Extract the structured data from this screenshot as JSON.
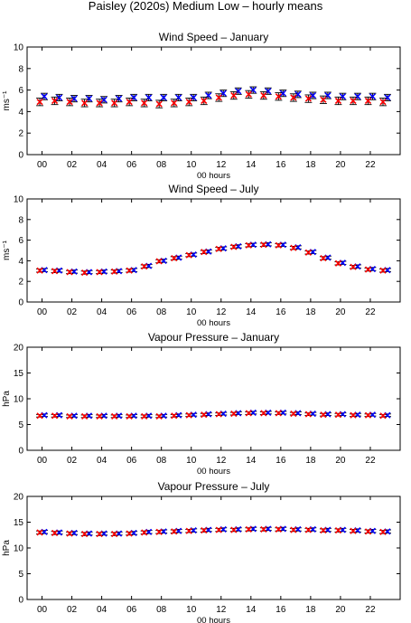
{
  "title": "Paisley (2020s) Medium Low – hourly means",
  "colors": {
    "series_a": "#0000ff",
    "series_b": "#ff0000",
    "errorbar": "#000000",
    "axes": "#000000"
  },
  "chart_data": [
    {
      "type": "scatter",
      "title": "Wind Speed – January",
      "xlabel": "00 hours",
      "ylabel": "ms⁻¹",
      "xlim": [
        -1,
        24
      ],
      "ylim": [
        0,
        10
      ],
      "yticks": [
        0,
        2,
        4,
        6,
        8,
        10
      ],
      "xticks": [
        "00",
        "02",
        "04",
        "06",
        "08",
        "10",
        "12",
        "14",
        "16",
        "18",
        "20",
        "22"
      ],
      "x": [
        0,
        1,
        2,
        3,
        4,
        5,
        6,
        7,
        8,
        9,
        10,
        11,
        12,
        13,
        14,
        15,
        16,
        17,
        18,
        19,
        20,
        21,
        22,
        23
      ],
      "series": [
        {
          "marker": "x",
          "color": "#0000ff",
          "values": [
            5.4,
            5.3,
            5.2,
            5.2,
            5.1,
            5.2,
            5.3,
            5.3,
            5.3,
            5.3,
            5.3,
            5.5,
            5.7,
            5.9,
            6.0,
            5.9,
            5.7,
            5.6,
            5.5,
            5.5,
            5.4,
            5.4,
            5.4,
            5.3
          ],
          "error": 0.3
        },
        {
          "marker": "x",
          "color": "#ff0000",
          "values": [
            4.9,
            5.0,
            4.9,
            4.8,
            4.8,
            4.8,
            4.9,
            4.8,
            4.7,
            4.8,
            4.9,
            5.0,
            5.3,
            5.5,
            5.6,
            5.5,
            5.4,
            5.3,
            5.2,
            5.1,
            5.0,
            5.0,
            5.0,
            4.9
          ],
          "error": 0.35
        }
      ]
    },
    {
      "type": "scatter",
      "title": "Wind Speed – July",
      "xlabel": "00 hours",
      "ylabel": "ms⁻¹",
      "xlim": [
        -1,
        24
      ],
      "ylim": [
        0,
        10
      ],
      "yticks": [
        0,
        2,
        4,
        6,
        8,
        10
      ],
      "xticks": [
        "00",
        "02",
        "04",
        "06",
        "08",
        "10",
        "12",
        "14",
        "16",
        "18",
        "20",
        "22"
      ],
      "x": [
        0,
        1,
        2,
        3,
        4,
        5,
        6,
        7,
        8,
        9,
        10,
        11,
        12,
        13,
        14,
        15,
        16,
        17,
        18,
        19,
        20,
        21,
        22,
        23
      ],
      "series": [
        {
          "marker": "x",
          "color": "#0000ff",
          "values": [
            3.1,
            3.05,
            2.95,
            2.9,
            2.95,
            3.0,
            3.1,
            3.5,
            4.0,
            4.3,
            4.6,
            4.9,
            5.2,
            5.4,
            5.55,
            5.6,
            5.55,
            5.3,
            4.85,
            4.3,
            3.8,
            3.45,
            3.2,
            3.1
          ],
          "error": 0.15
        },
        {
          "marker": "x",
          "color": "#ff0000",
          "values": [
            3.05,
            3.0,
            2.9,
            2.85,
            2.9,
            2.95,
            3.05,
            3.45,
            3.95,
            4.25,
            4.55,
            4.85,
            5.15,
            5.35,
            5.5,
            5.55,
            5.5,
            5.25,
            4.8,
            4.25,
            3.75,
            3.4,
            3.15,
            3.05
          ],
          "error": 0.15
        }
      ]
    },
    {
      "type": "scatter",
      "title": "Vapour Pressure – January",
      "xlabel": "00 hours",
      "ylabel": "hPa",
      "xlim": [
        -1,
        24
      ],
      "ylim": [
        0,
        20
      ],
      "yticks": [
        0,
        5,
        10,
        15,
        20
      ],
      "xticks": [
        "00",
        "02",
        "04",
        "06",
        "08",
        "10",
        "12",
        "14",
        "16",
        "18",
        "20",
        "22"
      ],
      "x": [
        0,
        1,
        2,
        3,
        4,
        5,
        6,
        7,
        8,
        9,
        10,
        11,
        12,
        13,
        14,
        15,
        16,
        17,
        18,
        19,
        20,
        21,
        22,
        23
      ],
      "series": [
        {
          "marker": "x",
          "color": "#0000ff",
          "values": [
            6.8,
            6.8,
            6.7,
            6.7,
            6.7,
            6.7,
            6.7,
            6.7,
            6.7,
            6.8,
            6.9,
            7.0,
            7.1,
            7.2,
            7.3,
            7.3,
            7.3,
            7.2,
            7.1,
            7.0,
            7.0,
            6.9,
            6.9,
            6.8
          ],
          "error": 0.25
        },
        {
          "marker": "x",
          "color": "#ff0000",
          "values": [
            6.7,
            6.7,
            6.6,
            6.6,
            6.6,
            6.6,
            6.6,
            6.6,
            6.6,
            6.7,
            6.8,
            6.9,
            7.0,
            7.1,
            7.2,
            7.2,
            7.2,
            7.1,
            7.0,
            6.9,
            6.9,
            6.8,
            6.8,
            6.7
          ],
          "error": 0.25
        }
      ]
    },
    {
      "type": "scatter",
      "title": "Vapour Pressure – July",
      "xlabel": "00 hours",
      "ylabel": "hPa",
      "xlim": [
        -1,
        24
      ],
      "ylim": [
        0,
        20
      ],
      "yticks": [
        0,
        5,
        10,
        15,
        20
      ],
      "xticks": [
        "00",
        "02",
        "04",
        "06",
        "08",
        "10",
        "12",
        "14",
        "16",
        "18",
        "20",
        "22"
      ],
      "x": [
        0,
        1,
        2,
        3,
        4,
        5,
        6,
        7,
        8,
        9,
        10,
        11,
        12,
        13,
        14,
        15,
        16,
        17,
        18,
        19,
        20,
        21,
        22,
        23
      ],
      "series": [
        {
          "marker": "x",
          "color": "#0000ff",
          "values": [
            13.1,
            13.0,
            12.9,
            12.8,
            12.8,
            12.8,
            12.9,
            13.1,
            13.2,
            13.3,
            13.4,
            13.5,
            13.6,
            13.6,
            13.7,
            13.7,
            13.7,
            13.6,
            13.6,
            13.5,
            13.5,
            13.4,
            13.3,
            13.2
          ],
          "error": 0.3
        },
        {
          "marker": "x",
          "color": "#ff0000",
          "values": [
            13.0,
            12.9,
            12.8,
            12.7,
            12.7,
            12.7,
            12.8,
            13.0,
            13.1,
            13.2,
            13.3,
            13.4,
            13.5,
            13.5,
            13.6,
            13.6,
            13.6,
            13.5,
            13.5,
            13.4,
            13.4,
            13.3,
            13.2,
            13.1
          ],
          "error": 0.3
        }
      ]
    }
  ]
}
